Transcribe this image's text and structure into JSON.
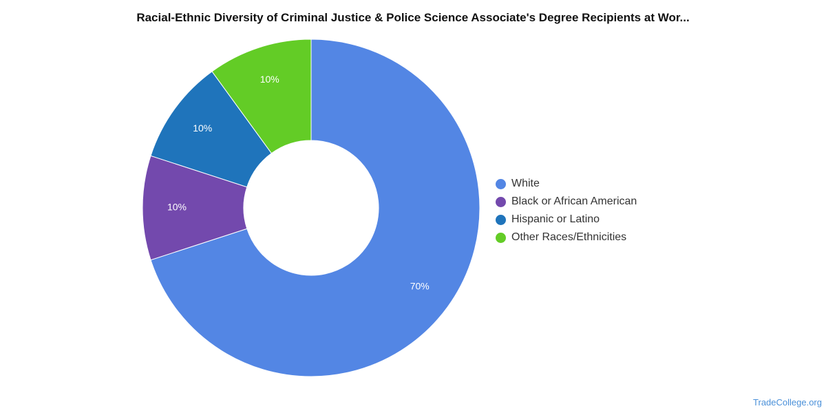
{
  "chart_data": {
    "type": "pie",
    "donut": true,
    "title": "Racial-Ethnic Diversity of Criminal Justice & Police Science Associate's Degree Recipients at Wor...",
    "slices": [
      {
        "name": "White",
        "value": 70,
        "label": "70%",
        "color": "#5386e4"
      },
      {
        "name": "Black or African American",
        "value": 10,
        "label": "10%",
        "color": "#7349ad"
      },
      {
        "name": "Hispanic or Latino",
        "value": 10,
        "label": "10%",
        "color": "#1f74bb"
      },
      {
        "name": "Other Races/Ethnicities",
        "value": 10,
        "label": "10%",
        "color": "#63cc26"
      }
    ],
    "legend_position": "right"
  },
  "source": "TradeCollege.org"
}
